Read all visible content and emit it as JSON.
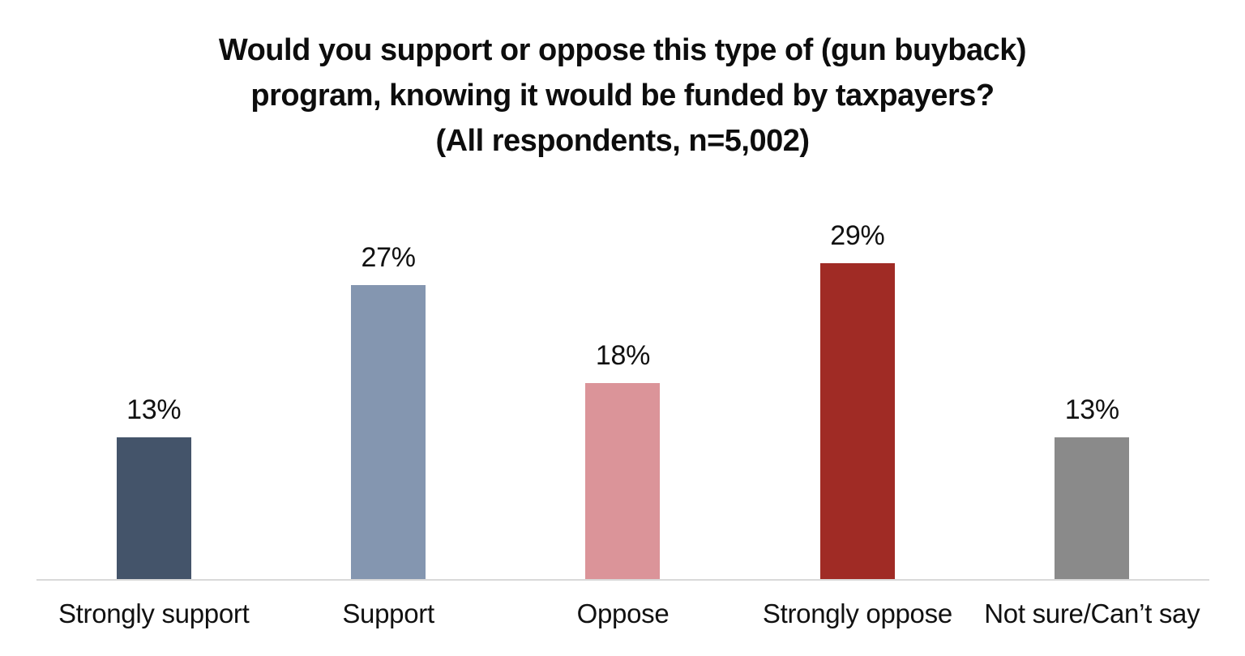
{
  "chart_data": {
    "type": "bar",
    "title": "Would you support or oppose this type of (gun buyback) program, knowing it would be funded by taxpayers? (All respondents, n=5,002)",
    "title_lines": [
      "Would you support or oppose this type of (gun buyback)",
      "program, knowing it would be funded by taxpayers?",
      "(All respondents, n=5,002)"
    ],
    "categories": [
      "Strongly support",
      "Support",
      "Oppose",
      "Strongly oppose",
      "Not sure/Can’t say"
    ],
    "values": [
      13,
      27,
      18,
      29,
      13
    ],
    "value_labels": [
      "13%",
      "27%",
      "18%",
      "29%",
      "13%"
    ],
    "bar_colors": [
      "#44546A",
      "#8496B0",
      "#DB9499",
      "#A02B25",
      "#8A8A8A"
    ],
    "xlabel": "",
    "ylabel": "",
    "ylim": [
      0,
      30
    ],
    "grid": false,
    "legend": "none",
    "y_axis_visible": false,
    "axis_line_color": "#D9D9D9",
    "data_label_position": "above-bar",
    "background_color": "#FFFFFF"
  }
}
